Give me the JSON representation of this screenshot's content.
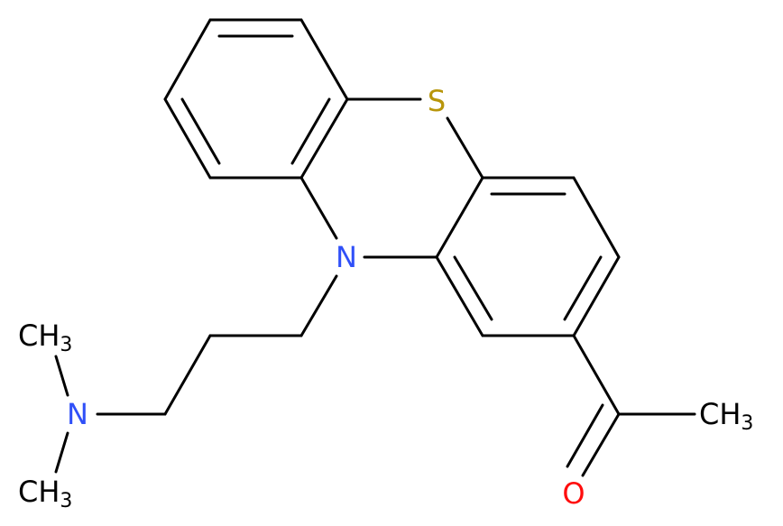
{
  "atoms": [
    {
      "label": "S"
    },
    {
      "label": "N"
    },
    {
      "label": "N"
    },
    {
      "label": "CH",
      "subscript": "3"
    },
    {
      "label": "CH",
      "subscript": "3"
    },
    {
      "label": "CH",
      "subscript": "3"
    },
    {
      "label": "O"
    }
  ]
}
